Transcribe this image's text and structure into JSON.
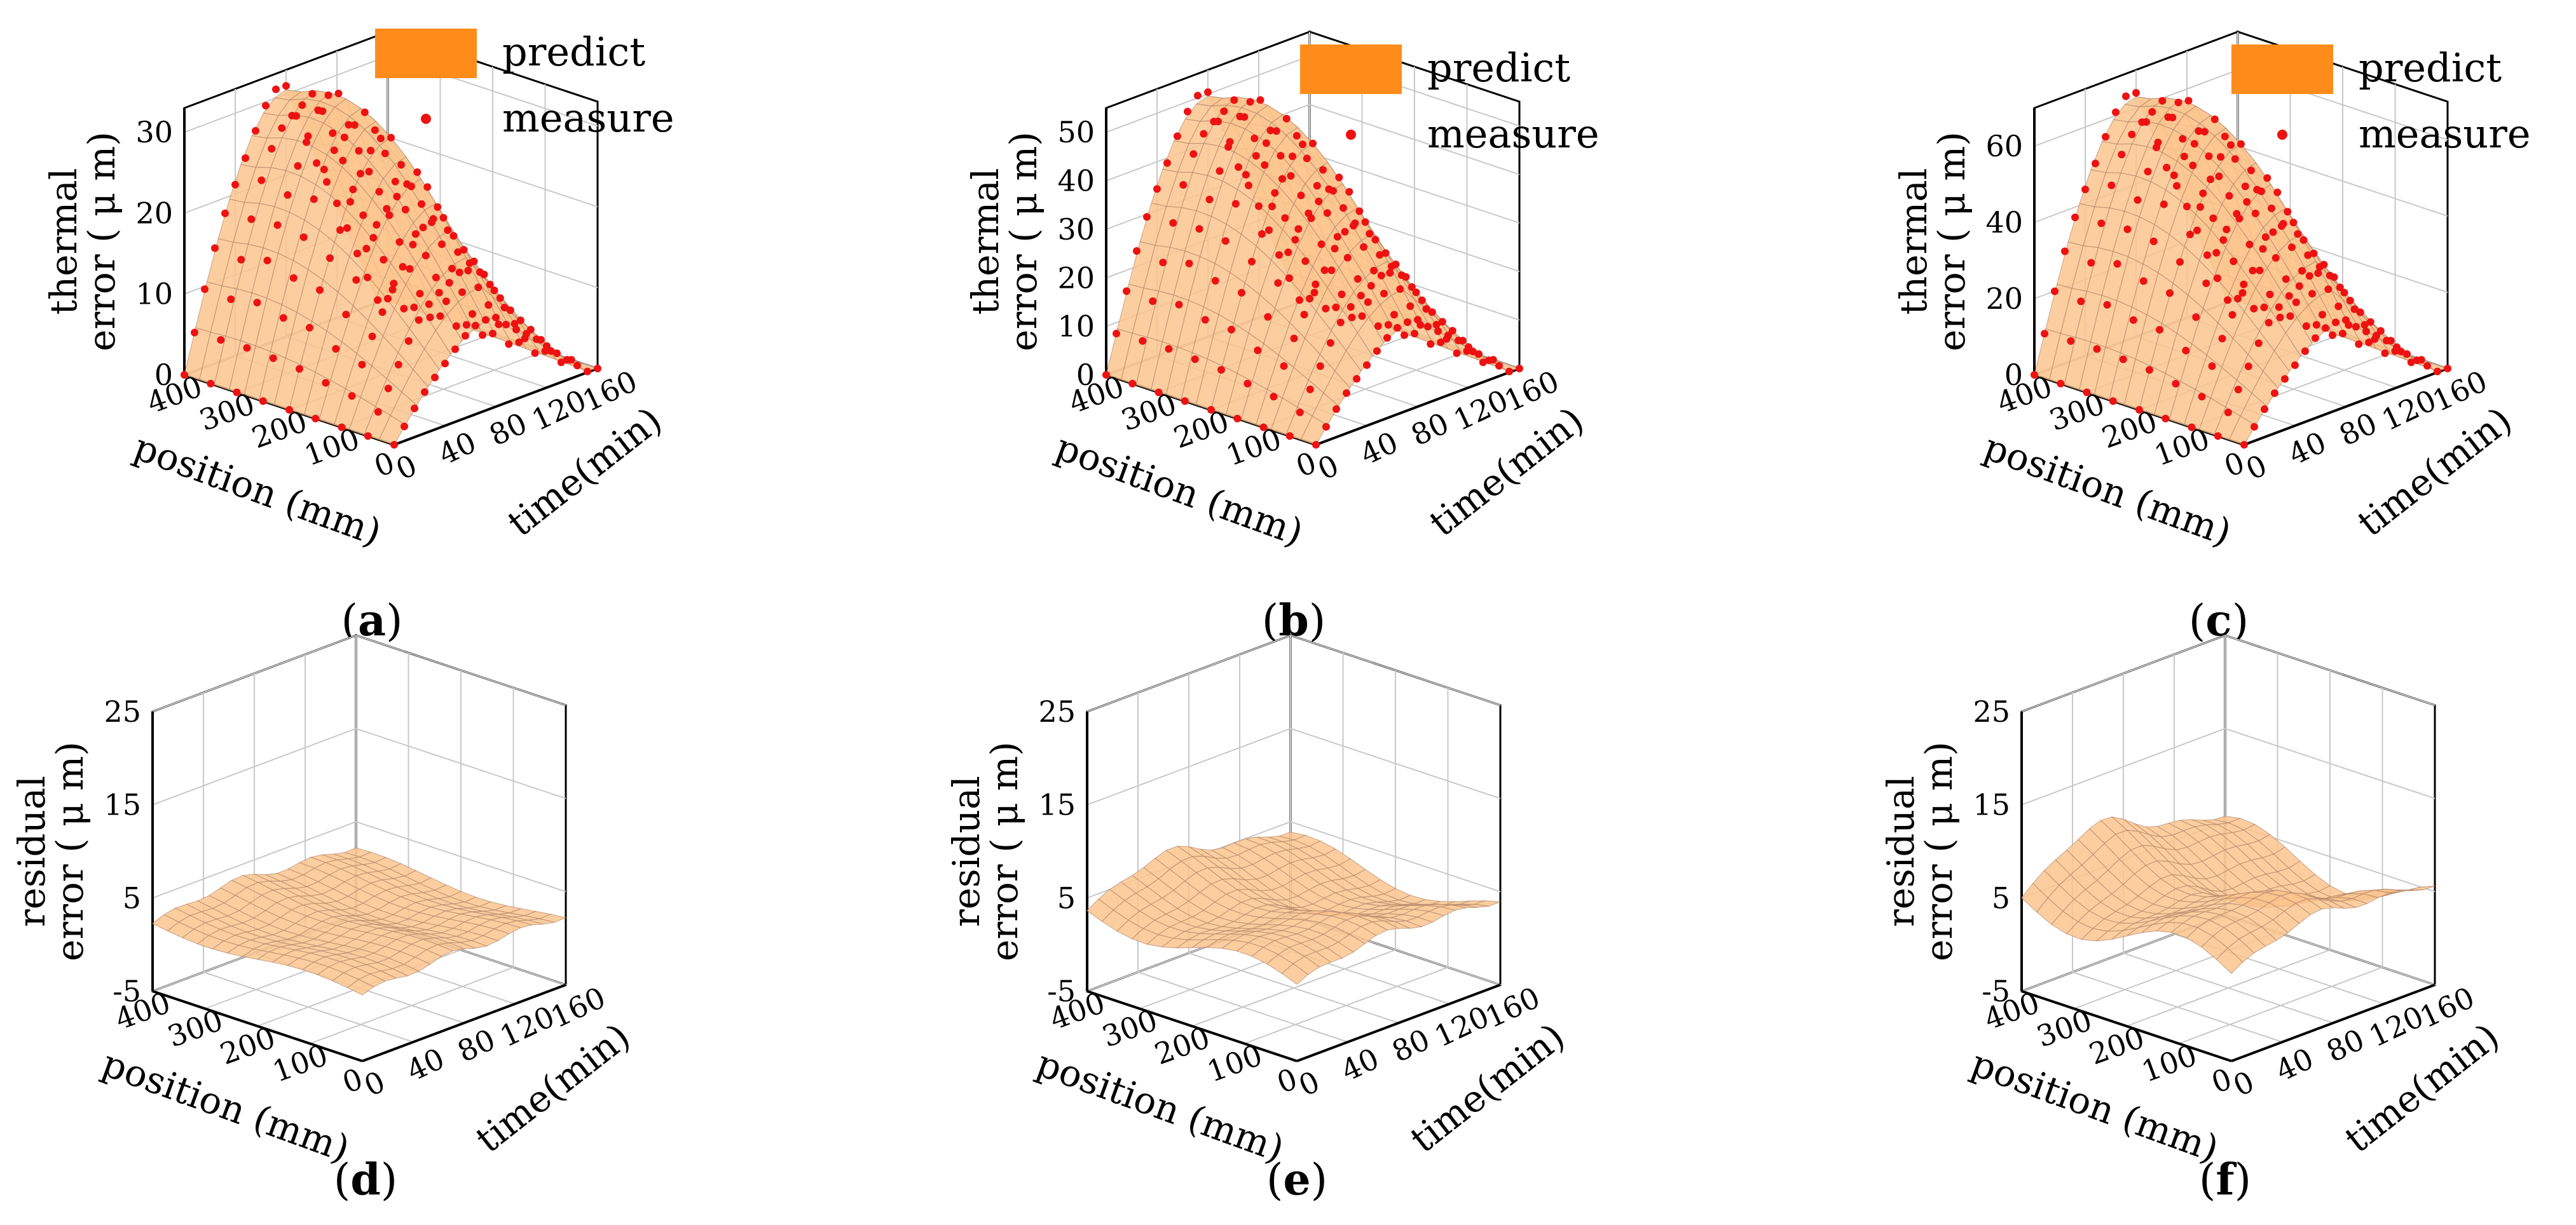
{
  "figure": {
    "legend": {
      "predict_label": "predict",
      "measure_label": "measure"
    },
    "colors": {
      "surface": "#f7a25b",
      "surface_light": "#fbc58e",
      "mesh": "#b0846a",
      "measure_dot": "#ee1111",
      "legend_swatch": "#ff8c1a",
      "grid": "#c8c8c8",
      "axis": "#000000"
    }
  },
  "chart_data": [
    {
      "id": "a",
      "caption": "a",
      "type": "surface3d",
      "zlabel_line1": "thermal",
      "zlabel_line2": "error ( μ m)",
      "xlabel": "position (mm)",
      "ylabel": "time(min)",
      "z_ticks": [
        "0",
        "10",
        "20",
        "30"
      ],
      "z_range": [
        0,
        33
      ],
      "x_ticks": [
        "400",
        "300",
        "200",
        "100",
        "0"
      ],
      "x_range": [
        0,
        400
      ],
      "y_ticks": [
        "0",
        "40",
        "80",
        "120",
        "160"
      ],
      "y_range": [
        0,
        160
      ],
      "peak": 32,
      "show_legend": true,
      "show_measure": true
    },
    {
      "id": "b",
      "caption": "b",
      "type": "surface3d",
      "zlabel_line1": "thermal",
      "zlabel_line2": "error ( μ m)",
      "xlabel": "position (mm)",
      "ylabel": "time(min)",
      "z_ticks": [
        "0",
        "10",
        "20",
        "30",
        "40",
        "50"
      ],
      "z_range": [
        0,
        55
      ],
      "x_ticks": [
        "400",
        "300",
        "200",
        "100",
        "0"
      ],
      "x_range": [
        0,
        400
      ],
      "y_ticks": [
        "0",
        "40",
        "80",
        "120",
        "160"
      ],
      "y_range": [
        0,
        160
      ],
      "peak": 52,
      "show_legend": true,
      "show_measure": true
    },
    {
      "id": "c",
      "caption": "c",
      "type": "surface3d",
      "zlabel_line1": "thermal",
      "zlabel_line2": "error ( μ m)",
      "xlabel": "position (mm)",
      "ylabel": "time(min)",
      "z_ticks": [
        "0",
        "20",
        "40",
        "60"
      ],
      "z_range": [
        0,
        70
      ],
      "x_ticks": [
        "400",
        "300",
        "200",
        "100",
        "0"
      ],
      "x_range": [
        0,
        400
      ],
      "y_ticks": [
        "0",
        "40",
        "80",
        "120",
        "160"
      ],
      "y_range": [
        0,
        160
      ],
      "peak": 66,
      "show_legend": true,
      "show_measure": true
    },
    {
      "id": "d",
      "caption": "d",
      "type": "surface3d",
      "zlabel_line1": "residual",
      "zlabel_line2": "error ( μ m)",
      "xlabel": "position (mm)",
      "ylabel": "time(min)",
      "z_ticks": [
        "-5",
        "5",
        "15",
        "25"
      ],
      "z_range": [
        -5,
        25
      ],
      "x_ticks": [
        "400",
        "300",
        "200",
        "100",
        "0"
      ],
      "x_range": [
        0,
        400
      ],
      "y_ticks": [
        "0",
        "40",
        "80",
        "120",
        "160"
      ],
      "y_range": [
        0,
        160
      ],
      "residual_level": 2,
      "residual_amp": 2,
      "show_legend": false,
      "show_measure": false
    },
    {
      "id": "e",
      "caption": "e",
      "type": "surface3d",
      "zlabel_line1": "residual",
      "zlabel_line2": "error ( μ m)",
      "xlabel": "position (mm)",
      "ylabel": "time(min)",
      "z_ticks": [
        "-5",
        "5",
        "15",
        "25"
      ],
      "z_range": [
        -5,
        25
      ],
      "x_ticks": [
        "400",
        "300",
        "200",
        "100",
        "0"
      ],
      "x_range": [
        0,
        400
      ],
      "y_ticks": [
        "0",
        "40",
        "80",
        "120",
        "160"
      ],
      "y_range": [
        0,
        160
      ],
      "residual_level": 3,
      "residual_amp": 5,
      "show_legend": false,
      "show_measure": false
    },
    {
      "id": "f",
      "caption": "f",
      "type": "surface3d",
      "zlabel_line1": "residual",
      "zlabel_line2": "error ( μ m)",
      "xlabel": "position (mm)",
      "ylabel": "time(min)",
      "z_ticks": [
        "-5",
        "5",
        "15",
        "25"
      ],
      "z_range": [
        -5,
        25
      ],
      "x_ticks": [
        "400",
        "300",
        "200",
        "100",
        "0"
      ],
      "x_range": [
        0,
        400
      ],
      "y_ticks": [
        "0",
        "40",
        "80",
        "120",
        "160"
      ],
      "y_range": [
        0,
        160
      ],
      "residual_level": 4,
      "residual_amp": 8,
      "show_legend": false,
      "show_measure": false
    }
  ]
}
